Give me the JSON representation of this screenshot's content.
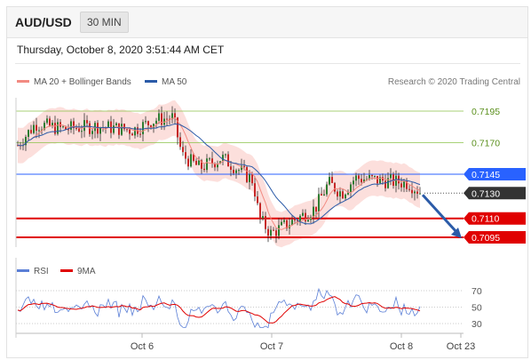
{
  "header": {
    "pair": "AUD/USD",
    "timeframe": "30 MIN"
  },
  "datetime": "Thursday, October 8, 2020 3:51:44 AM CET",
  "legend": {
    "ma20_label": "MA 20 + Bollinger Bands",
    "ma50_label": "MA 50",
    "research": "Research © 2020 Trading Central",
    "rsi_label": "RSI",
    "ma9_label": "9MA"
  },
  "colors": {
    "ma20": "#f28b82",
    "ma50": "#2b5ba8",
    "support": "#e00000",
    "resistance": "#8bc34a",
    "pivot": "#2962ff",
    "last": "#333333",
    "rsi": "#5b7fd6",
    "rsi_ma": "#e00000"
  },
  "chart_data": [
    {
      "type": "candlestick",
      "instrument": "AUD/USD",
      "levels": [
        {
          "value": 0.7195,
          "label": "0.7195",
          "kind": "resistance"
        },
        {
          "value": 0.717,
          "label": "0.7170",
          "kind": "resistance"
        },
        {
          "value": 0.7145,
          "label": "0.7145",
          "kind": "pivot"
        },
        {
          "value": 0.713,
          "label": "0.7130",
          "kind": "last"
        },
        {
          "value": 0.711,
          "label": "0.7110",
          "kind": "support"
        },
        {
          "value": 0.7095,
          "label": "0.7095",
          "kind": "support"
        }
      ],
      "x_ticks": [
        "Oct 6",
        "Oct 7",
        "Oct 8",
        "Oct 23"
      ],
      "series": [
        {
          "name": "MA 20 + Bollinger Bands"
        },
        {
          "name": "MA 50"
        }
      ],
      "arrow": {
        "from": 0.713,
        "to": 0.7095,
        "direction": "down"
      }
    },
    {
      "type": "line",
      "y_ticks": [
        70,
        50,
        30
      ],
      "ylim": [
        20,
        80
      ],
      "series": [
        {
          "name": "RSI"
        },
        {
          "name": "9MA"
        }
      ]
    }
  ]
}
